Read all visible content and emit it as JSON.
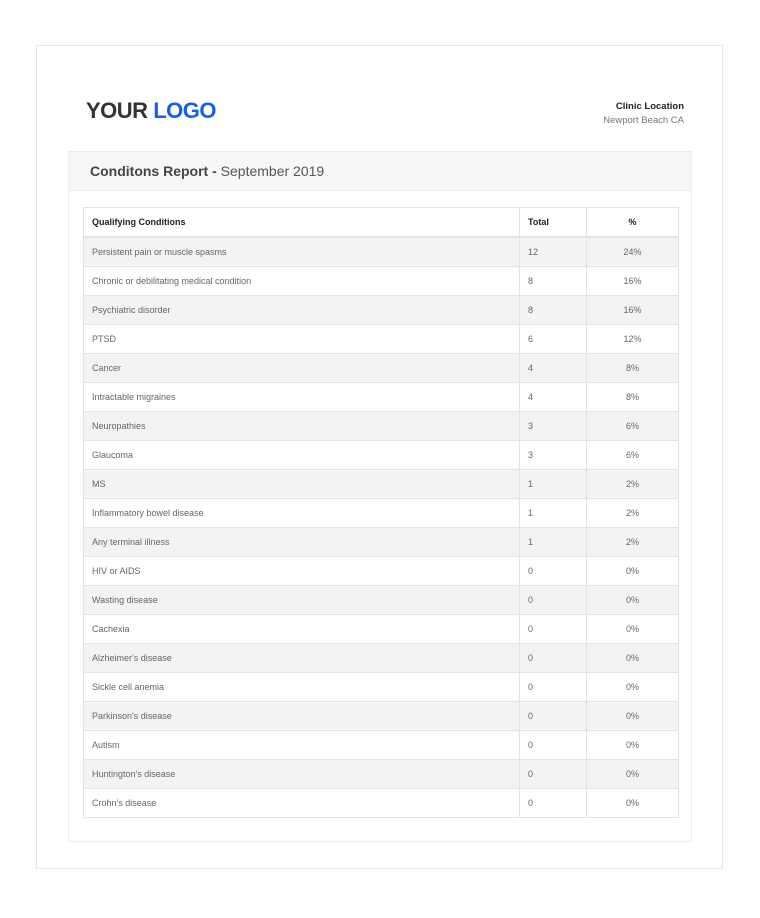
{
  "logo": {
    "part1": "YOUR",
    "part2": "LOGO"
  },
  "clinic": {
    "title": "Clinic Location",
    "location": "Newport Beach CA"
  },
  "report": {
    "title": "Conditons Report -",
    "period": "September 2019"
  },
  "table": {
    "headers": [
      "Qualifying Conditions",
      "Total",
      "%"
    ],
    "rows": [
      [
        "Persistent pain or muscle spasms",
        "12",
        "24%"
      ],
      [
        "Chronic or debilitating medical condition",
        "8",
        "16%"
      ],
      [
        "Psychiatric disorder",
        "8",
        "16%"
      ],
      [
        "PTSD",
        "6",
        "12%"
      ],
      [
        "Cancer",
        "4",
        "8%"
      ],
      [
        "Intractable migraines",
        "4",
        "8%"
      ],
      [
        "Neuropathies",
        "3",
        "6%"
      ],
      [
        "Glaucoma",
        "3",
        "6%"
      ],
      [
        "MS",
        "1",
        "2%"
      ],
      [
        "Inflammatory bowel disease",
        "1",
        "2%"
      ],
      [
        "Any terminal illness",
        "1",
        "2%"
      ],
      [
        "HIV or AIDS",
        "0",
        "0%"
      ],
      [
        "Wasting disease",
        "0",
        "0%"
      ],
      [
        "Cachexia",
        "0",
        "0%"
      ],
      [
        "Alzheimer's disease",
        "0",
        "0%"
      ],
      [
        "Sickle cell anemia",
        "0",
        "0%"
      ],
      [
        "Parkinson's disease",
        "0",
        "0%"
      ],
      [
        "Autism",
        "0",
        "0%"
      ],
      [
        "Huntington's disease",
        "0",
        "0%"
      ],
      [
        "Crohn's disease",
        "0",
        "0%"
      ]
    ]
  }
}
